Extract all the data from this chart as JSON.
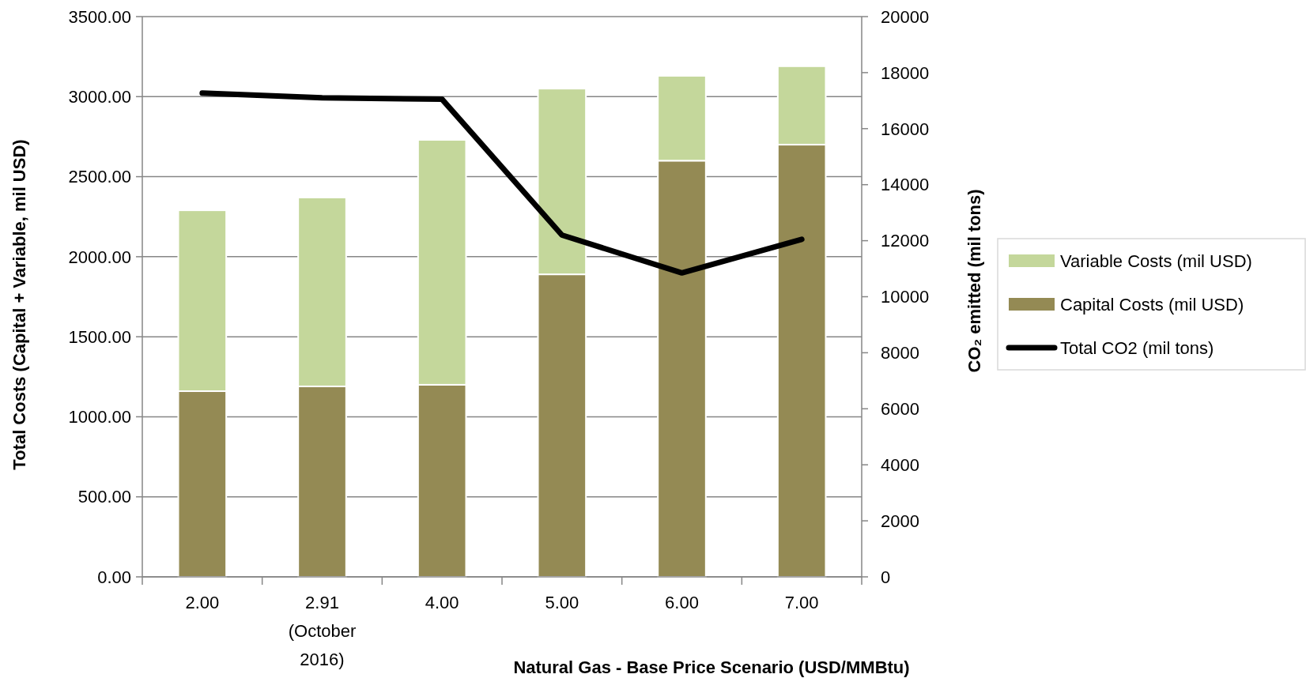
{
  "chart_data": {
    "type": "bar",
    "stacked": true,
    "xlabel": "Natural Gas - Base Price Scenario (USD/MMBtu)",
    "ylabel": "Total Costs (Capital + Variable, mil USD)",
    "y2label": "CO₂ emitted (mil tons)",
    "categories": [
      "2.00",
      "2.91 (October 2016)",
      "4.00",
      "5.00",
      "6.00",
      "7.00"
    ],
    "series": [
      {
        "name": "Capital Costs (mil USD)",
        "color": "#948a54",
        "values": [
          1160,
          1190,
          1200,
          1890,
          2600,
          2700
        ]
      },
      {
        "name": "Variable Costs (mil USD)",
        "color": "#c4d79b",
        "values": [
          1130,
          1180,
          1530,
          1160,
          530,
          490
        ]
      },
      {
        "name": "Total CO2 (mil tons)",
        "type": "line",
        "axis": "y2",
        "color": "#000000",
        "values": [
          17270,
          17100,
          17050,
          12200,
          10850,
          12050
        ]
      }
    ],
    "ylim": [
      0,
      3500
    ],
    "yticks": [
      {
        "value": 0,
        "label": "0.00"
      },
      {
        "value": 500,
        "label": "500.00"
      },
      {
        "value": 1000,
        "label": "1000.00"
      },
      {
        "value": 1500,
        "label": "1500.00"
      },
      {
        "value": 2000,
        "label": "2000.00"
      },
      {
        "value": 2500,
        "label": "2500.00"
      },
      {
        "value": 3000,
        "label": "3000.00"
      },
      {
        "value": 3500,
        "label": "3500.00"
      }
    ],
    "y2lim": [
      0,
      20000
    ],
    "y2ticks": [
      0,
      2000,
      4000,
      6000,
      8000,
      10000,
      12000,
      14000,
      16000,
      18000,
      20000
    ],
    "grid": "y",
    "legend": "right",
    "marker": "none",
    "line_style": "solid"
  }
}
